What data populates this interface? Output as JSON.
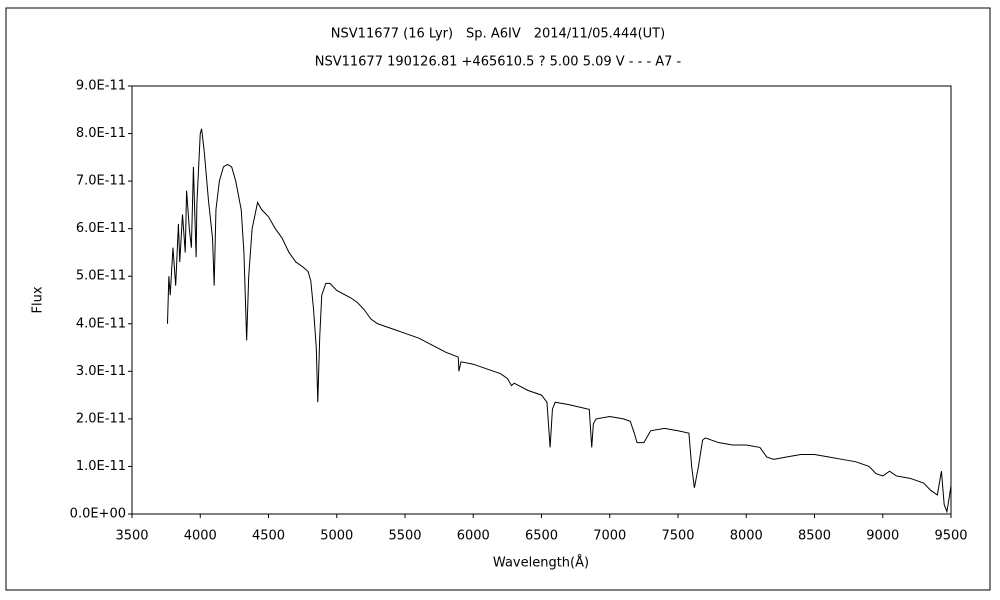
{
  "chart_data": {
    "type": "line",
    "title": "NSV11677 (16 Lyr)　Sp. A6IV　2014/11/05.444(UT)",
    "subtitle": "NSV11677 190126.81 +465610.5 ? 5.00 5.09 V - - - A7 -",
    "x_label": "Wavelength(Å)",
    "y_label": "Flux",
    "xlim": [
      3500,
      9500
    ],
    "xticks": [
      3500,
      4000,
      4500,
      5000,
      5500,
      6000,
      6500,
      7000,
      7500,
      8000,
      8500,
      9000,
      9500
    ],
    "ylim": [
      0,
      9e-11
    ],
    "yticks": [
      {
        "value": 0,
        "label": "0.0E+00"
      },
      {
        "value": 1e-11,
        "label": "1.0E-11"
      },
      {
        "value": 2e-11,
        "label": "2.0E-11"
      },
      {
        "value": 3e-11,
        "label": "3.0E-11"
      },
      {
        "value": 4e-11,
        "label": "4.0E-11"
      },
      {
        "value": 5e-11,
        "label": "5.0E-11"
      },
      {
        "value": 6e-11,
        "label": "6.0E-11"
      },
      {
        "value": 7e-11,
        "label": "7.0E-11"
      },
      {
        "value": 8e-11,
        "label": "8.0E-11"
      },
      {
        "value": 9e-11,
        "label": "9.0E-11"
      }
    ],
    "color": "#000000",
    "x": [
      3760,
      3770,
      3780,
      3800,
      3820,
      3840,
      3850,
      3870,
      3890,
      3900,
      3920,
      3935,
      3950,
      3960,
      3970,
      3975,
      3990,
      4000,
      4010,
      4030,
      4060,
      4090,
      4102,
      4115,
      4140,
      4170,
      4200,
      4230,
      4260,
      4300,
      4320,
      4340,
      4355,
      4380,
      4420,
      4450,
      4500,
      4550,
      4600,
      4650,
      4700,
      4750,
      4790,
      4810,
      4830,
      4850,
      4861,
      4875,
      4890,
      4920,
      4950,
      5000,
      5100,
      5150,
      5200,
      5250,
      5300,
      5400,
      5500,
      5600,
      5700,
      5800,
      5890,
      5895,
      5910,
      6000,
      6100,
      6200,
      6250,
      6280,
      6300,
      6400,
      6500,
      6540,
      6563,
      6580,
      6600,
      6700,
      6850,
      6868,
      6880,
      6900,
      7000,
      7100,
      7150,
      7180,
      7200,
      7250,
      7280,
      7300,
      7400,
      7500,
      7580,
      7600,
      7620,
      7650,
      7680,
      7700,
      7800,
      7900,
      8000,
      8100,
      8150,
      8200,
      8300,
      8400,
      8500,
      8600,
      8700,
      8800,
      8900,
      8950,
      9000,
      9050,
      9100,
      9200,
      9300,
      9350,
      9400,
      9430,
      9450,
      9470,
      9490,
      9500
    ],
    "values": [
      4e-11,
      5e-11,
      4.6e-11,
      5.6e-11,
      4.8e-11,
      6.1e-11,
      5.3e-11,
      6.3e-11,
      5.5e-11,
      6.8e-11,
      6e-11,
      5.6e-11,
      7.3e-11,
      6.3e-11,
      5.4e-11,
      6.5e-11,
      7.4e-11,
      8e-11,
      8.1e-11,
      7.6e-11,
      6.6e-11,
      5.8e-11,
      4.8e-11,
      6.4e-11,
      7e-11,
      7.3e-11,
      7.35e-11,
      7.3e-11,
      7e-11,
      6.4e-11,
      5.5e-11,
      3.65e-11,
      5e-11,
      6e-11,
      6.55e-11,
      6.4e-11,
      6.25e-11,
      6e-11,
      5.8e-11,
      5.5e-11,
      5.3e-11,
      5.2e-11,
      5.1e-11,
      4.9e-11,
      4.3e-11,
      3.5e-11,
      2.35e-11,
      3.7e-11,
      4.6e-11,
      4.85e-11,
      4.85e-11,
      4.7e-11,
      4.55e-11,
      4.45e-11,
      4.3e-11,
      4.1e-11,
      4e-11,
      3.9e-11,
      3.8e-11,
      3.7e-11,
      3.55e-11,
      3.4e-11,
      3.3e-11,
      3e-11,
      3.2e-11,
      3.15e-11,
      3.05e-11,
      2.95e-11,
      2.85e-11,
      2.7e-11,
      2.75e-11,
      2.6e-11,
      2.5e-11,
      2.35e-11,
      1.4e-11,
      2.2e-11,
      2.35e-11,
      2.3e-11,
      2.2e-11,
      1.4e-11,
      1.9e-11,
      2e-11,
      2.05e-11,
      2e-11,
      1.95e-11,
      1.7e-11,
      1.5e-11,
      1.5e-11,
      1.65e-11,
      1.75e-11,
      1.8e-11,
      1.75e-11,
      1.7e-11,
      1e-11,
      5.5e-12,
      1e-11,
      1.55e-11,
      1.6e-11,
      1.5e-11,
      1.45e-11,
      1.45e-11,
      1.4e-11,
      1.2e-11,
      1.15e-11,
      1.2e-11,
      1.25e-11,
      1.25e-11,
      1.2e-11,
      1.15e-11,
      1.1e-11,
      1e-11,
      8.5e-12,
      8e-12,
      9e-12,
      8e-12,
      7.5e-12,
      6.5e-12,
      5e-12,
      4e-12,
      9e-12,
      2e-12,
      5e-13,
      4e-12,
      6e-12
    ]
  }
}
